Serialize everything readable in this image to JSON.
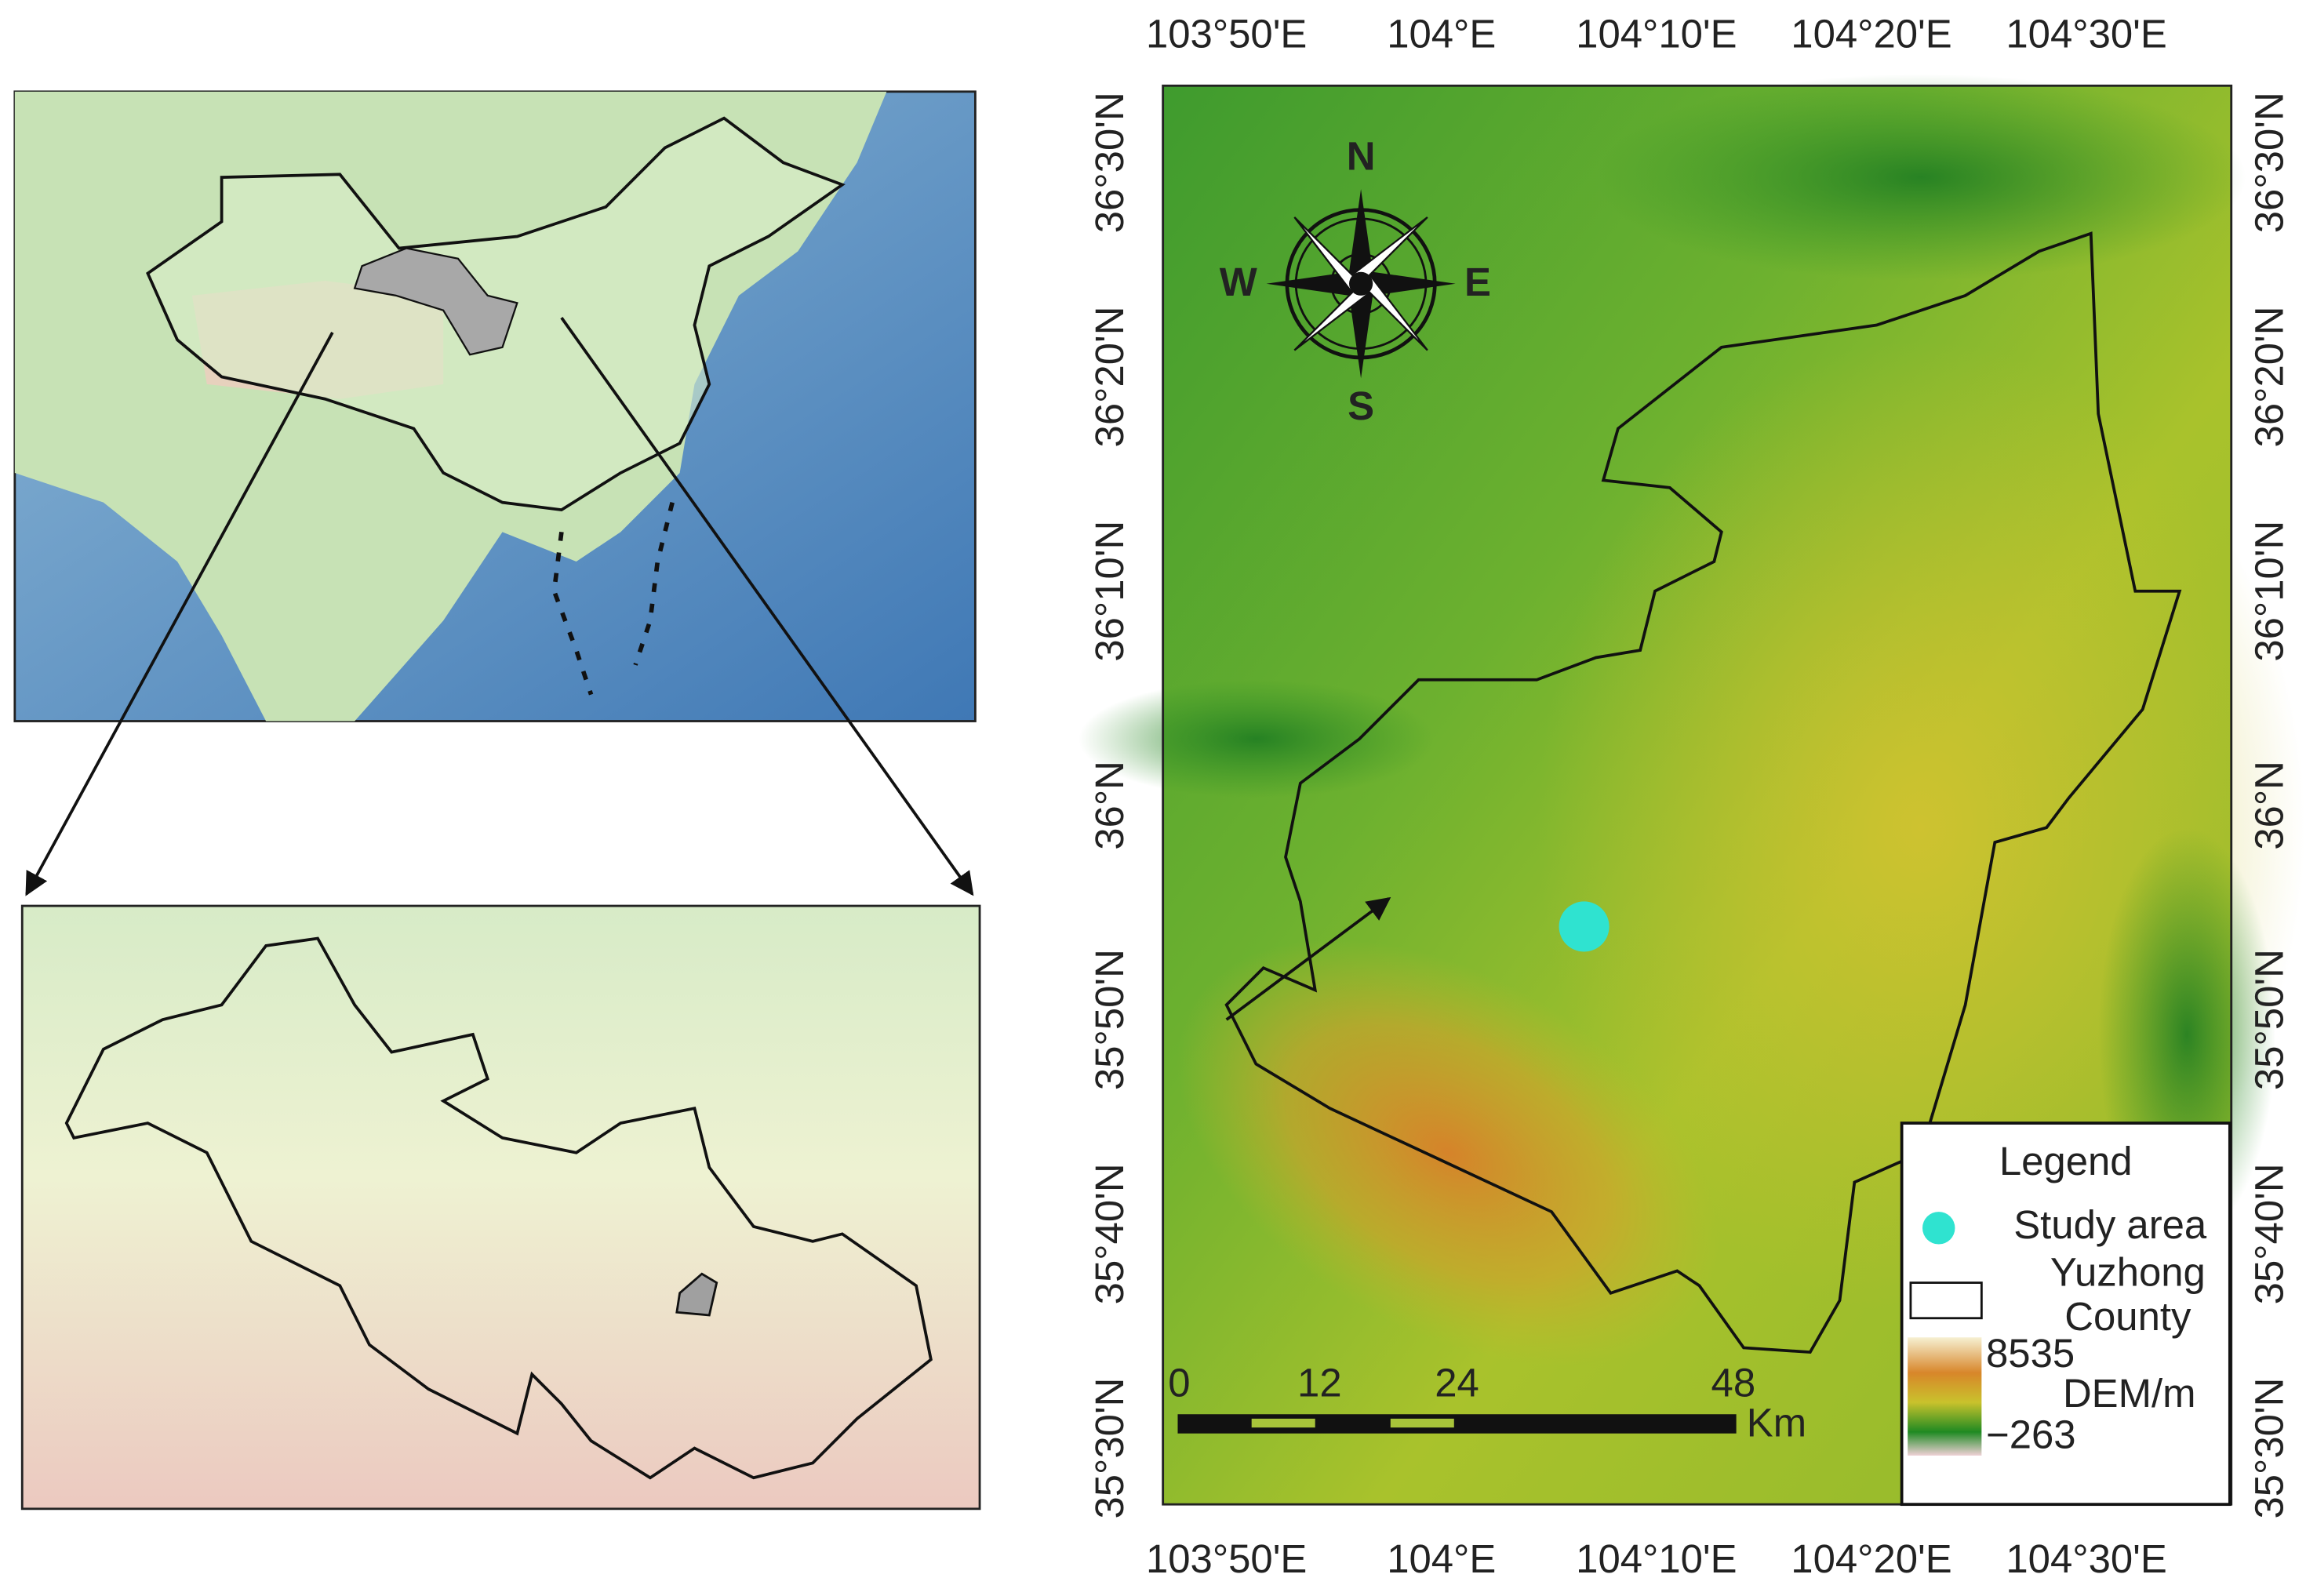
{
  "longitude_labels": [
    "103°50'E",
    "104°E",
    "104°10'E",
    "104°20'E",
    "104°30'E"
  ],
  "latitude_labels": [
    "36°30'N",
    "36°20'N",
    "36°10'N",
    "36°N",
    "35°50'N",
    "35°40'N",
    "35°30'N"
  ],
  "compass": {
    "north": "N",
    "east": "E",
    "south": "S",
    "west": "W"
  },
  "legend": {
    "title": "Legend",
    "study_area": "Study area",
    "boundary": [
      "Yuzhong",
      "County"
    ],
    "dem": {
      "max": "8535",
      "min": "−263",
      "label": "DEM/m"
    }
  },
  "scale_bar": {
    "ticks": [
      0,
      12,
      24,
      48
    ],
    "unit": "Km"
  }
}
